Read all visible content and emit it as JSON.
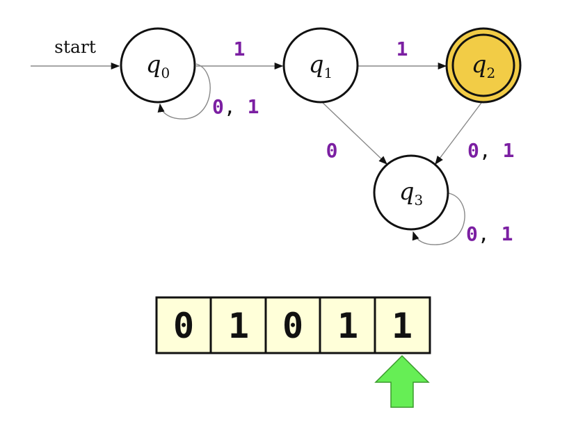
{
  "colors": {
    "symbol": "#7b1fa2",
    "accepting_fill": "#f2cc46",
    "tape_fill": "#ffffd9",
    "head_arrow": "#66ee55"
  },
  "diagram": {
    "start_label": "start",
    "states": [
      {
        "id": "q0",
        "name": "q",
        "sub": "0",
        "accepting": false
      },
      {
        "id": "q1",
        "name": "q",
        "sub": "1",
        "accepting": false
      },
      {
        "id": "q2",
        "name": "q",
        "sub": "2",
        "accepting": true
      },
      {
        "id": "q3",
        "name": "q",
        "sub": "3",
        "accepting": false
      }
    ],
    "transitions": [
      {
        "from": "q0",
        "to": "q0",
        "symbols": [
          "0",
          "1"
        ]
      },
      {
        "from": "q0",
        "to": "q1",
        "symbols": [
          "1"
        ]
      },
      {
        "from": "q1",
        "to": "q2",
        "symbols": [
          "1"
        ]
      },
      {
        "from": "q1",
        "to": "q3",
        "symbols": [
          "0"
        ]
      },
      {
        "from": "q2",
        "to": "q3",
        "symbols": [
          "0",
          "1"
        ]
      },
      {
        "from": "q3",
        "to": "q3",
        "symbols": [
          "0",
          "1"
        ]
      }
    ]
  },
  "tape": {
    "cells": [
      "0",
      "1",
      "0",
      "1",
      "1"
    ],
    "head_index": 4
  }
}
